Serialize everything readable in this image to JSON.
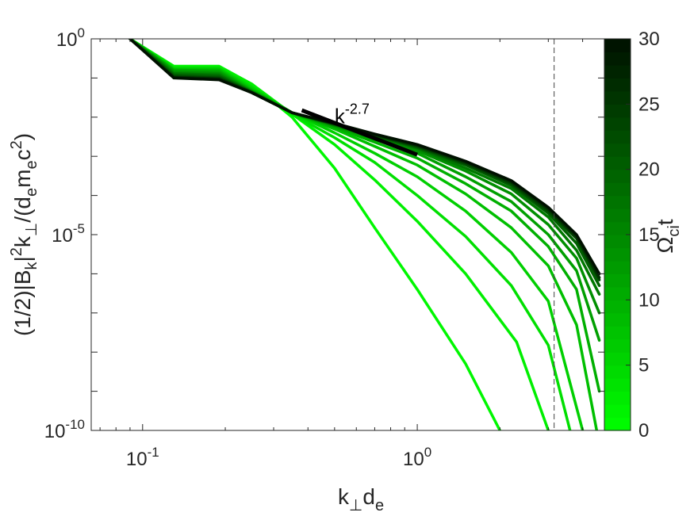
{
  "chart_data": {
    "type": "line",
    "x_scale": "log",
    "y_scale": "log",
    "xlabel_parts": {
      "k": "k",
      "perp": "⊥",
      "d": "d",
      "e": "e"
    },
    "ylabel_parts": {
      "prefix": "(1/2)|B",
      "sub_k": "k",
      "bar": "|",
      "sup_2": "2",
      "k": "k",
      "sub_perp": "⊥",
      "open": "/(d",
      "sub_e1": "e",
      "m": "m",
      "sub_e2": "e",
      "c": "c",
      "sup_2b": "2",
      "close": ")"
    },
    "xlim": [
      0.065,
      4.8
    ],
    "ylim": [
      1e-10,
      1
    ],
    "x_ticks": [
      {
        "value": 0.1,
        "base": "10",
        "exp": "-1"
      },
      {
        "value": 1,
        "base": "10",
        "exp": "0"
      }
    ],
    "y_ticks": [
      {
        "value": 1,
        "base": "10",
        "exp": "0"
      },
      {
        "value": 1e-05,
        "base": "10",
        "exp": "-5"
      },
      {
        "value": 1e-10,
        "base": "10",
        "exp": "-10"
      }
    ],
    "grid": false,
    "vertical_reference_line": {
      "x": 3.15,
      "style": "dashed"
    },
    "slope_guide": {
      "x": [
        0.38,
        1.0
      ],
      "y": [
        0.015,
        0.0011
      ],
      "label_base": "k",
      "label_exp": "-2.7",
      "label_x": 0.5,
      "label_y": 0.007
    },
    "colorbar": {
      "label_omega": "Ω",
      "label_sub": "ci",
      "label_t": "t",
      "min": 0,
      "max": 30,
      "ticks": [
        {
          "value": 0,
          "label": "0"
        },
        {
          "value": 5,
          "label": "5"
        },
        {
          "value": 10,
          "label": "10"
        },
        {
          "value": 15,
          "label": "15"
        },
        {
          "value": 20,
          "label": "20"
        },
        {
          "value": 25,
          "label": "25"
        },
        {
          "value": 30,
          "label": "30"
        }
      ],
      "color_min": "#00ff00",
      "color_max": "#001000"
    },
    "series": [
      {
        "t": 1,
        "x": [
          0.09,
          0.13,
          0.19,
          0.25,
          0.35,
          0.5,
          0.7,
          1.0,
          1.5,
          2.0
        ],
        "y": [
          1.0,
          0.2,
          0.2,
          0.07,
          0.01,
          0.0005,
          1.5e-05,
          4e-07,
          5e-09,
          1e-10
        ]
      },
      {
        "t": 2,
        "x": [
          0.09,
          0.13,
          0.19,
          0.25,
          0.35,
          0.5,
          0.7,
          1.0,
          1.5,
          2.3,
          3.0
        ],
        "y": [
          1.0,
          0.19,
          0.19,
          0.07,
          0.012,
          0.002,
          0.00025,
          2.2e-05,
          1e-06,
          1.8e-08,
          1e-10
        ]
      },
      {
        "t": 4,
        "x": [
          0.09,
          0.13,
          0.19,
          0.25,
          0.35,
          0.5,
          0.7,
          1.0,
          1.5,
          2.2,
          3.0,
          3.6
        ],
        "y": [
          1.0,
          0.18,
          0.18,
          0.06,
          0.012,
          0.003,
          0.0007,
          0.0001,
          9e-06,
          5e-07,
          1.5e-08,
          1e-10
        ]
      },
      {
        "t": 6,
        "x": [
          0.09,
          0.13,
          0.19,
          0.25,
          0.35,
          0.5,
          0.7,
          1.0,
          1.5,
          2.2,
          3.0,
          4.0
        ],
        "y": [
          1.0,
          0.17,
          0.17,
          0.055,
          0.013,
          0.004,
          0.0012,
          0.0003,
          4e-05,
          3.5e-06,
          2e-07,
          1e-10
        ]
      },
      {
        "t": 8,
        "x": [
          0.09,
          0.13,
          0.19,
          0.25,
          0.35,
          0.5,
          0.7,
          1.0,
          1.5,
          2.2,
          3.0,
          3.8,
          4.5
        ],
        "y": [
          1.0,
          0.16,
          0.16,
          0.05,
          0.013,
          0.005,
          0.0018,
          0.0006,
          0.00011,
          1.5e-05,
          1.6e-06,
          5e-08,
          1e-10
        ]
      },
      {
        "t": 10,
        "x": [
          0.09,
          0.13,
          0.19,
          0.25,
          0.35,
          0.5,
          0.7,
          1.0,
          1.5,
          2.2,
          3.0,
          3.8,
          4.6
        ],
        "y": [
          1.0,
          0.16,
          0.15,
          0.048,
          0.013,
          0.0055,
          0.0023,
          0.0009,
          0.0002,
          4e-05,
          5e-06,
          4e-07,
          1e-09
        ]
      },
      {
        "t": 12,
        "x": [
          0.09,
          0.13,
          0.19,
          0.25,
          0.35,
          0.5,
          0.7,
          1.0,
          1.5,
          2.2,
          3.0,
          3.8,
          4.6
        ],
        "y": [
          1.0,
          0.15,
          0.14,
          0.046,
          0.013,
          0.006,
          0.0027,
          0.0012,
          0.0003,
          7e-05,
          1e-05,
          1.2e-06,
          2e-08
        ]
      },
      {
        "t": 14,
        "x": [
          0.09,
          0.13,
          0.19,
          0.25,
          0.35,
          0.5,
          0.7,
          1.0,
          1.5,
          2.2,
          3.0,
          3.8,
          4.6
        ],
        "y": [
          1.0,
          0.14,
          0.13,
          0.045,
          0.013,
          0.0062,
          0.003,
          0.0014,
          0.00042,
          0.00011,
          1.8e-05,
          2.5e-06,
          1e-07
        ]
      },
      {
        "t": 17,
        "x": [
          0.09,
          0.13,
          0.19,
          0.25,
          0.35,
          0.5,
          0.7,
          1.0,
          1.5,
          2.2,
          3.0,
          3.8,
          4.6
        ],
        "y": [
          1.0,
          0.13,
          0.12,
          0.044,
          0.013,
          0.0064,
          0.0032,
          0.0016,
          0.0005,
          0.00015,
          2.8e-05,
          4e-06,
          3e-07
        ]
      },
      {
        "t": 20,
        "x": [
          0.09,
          0.13,
          0.19,
          0.25,
          0.35,
          0.5,
          0.7,
          1.0,
          1.5,
          2.2,
          3.0,
          3.8,
          4.6
        ],
        "y": [
          1.0,
          0.12,
          0.11,
          0.043,
          0.013,
          0.0066,
          0.0034,
          0.0017,
          0.0006,
          0.00018,
          3.5e-05,
          6e-06,
          5e-07
        ]
      },
      {
        "t": 23,
        "x": [
          0.09,
          0.13,
          0.19,
          0.25,
          0.35,
          0.5,
          0.7,
          1.0,
          1.5,
          2.2,
          3.0,
          3.8,
          4.6
        ],
        "y": [
          1.0,
          0.11,
          0.1,
          0.043,
          0.013,
          0.0067,
          0.0035,
          0.0018,
          0.00065,
          0.0002,
          4e-05,
          8e-06,
          7e-07
        ]
      },
      {
        "t": 26,
        "x": [
          0.09,
          0.13,
          0.19,
          0.25,
          0.35,
          0.5,
          0.7,
          1.0,
          1.5,
          2.2,
          3.0,
          3.8,
          4.6
        ],
        "y": [
          1.0,
          0.105,
          0.095,
          0.042,
          0.013,
          0.0068,
          0.0036,
          0.0019,
          0.0007,
          0.00022,
          4.5e-05,
          9e-06,
          8e-07
        ]
      },
      {
        "t": 30,
        "x": [
          0.09,
          0.13,
          0.19,
          0.25,
          0.35,
          0.5,
          0.7,
          1.0,
          1.5,
          2.2,
          3.0,
          3.8,
          4.6
        ],
        "y": [
          1.0,
          0.1,
          0.09,
          0.042,
          0.013,
          0.007,
          0.0037,
          0.002,
          0.00075,
          0.00024,
          5e-05,
          1e-05,
          1e-06
        ]
      }
    ]
  }
}
